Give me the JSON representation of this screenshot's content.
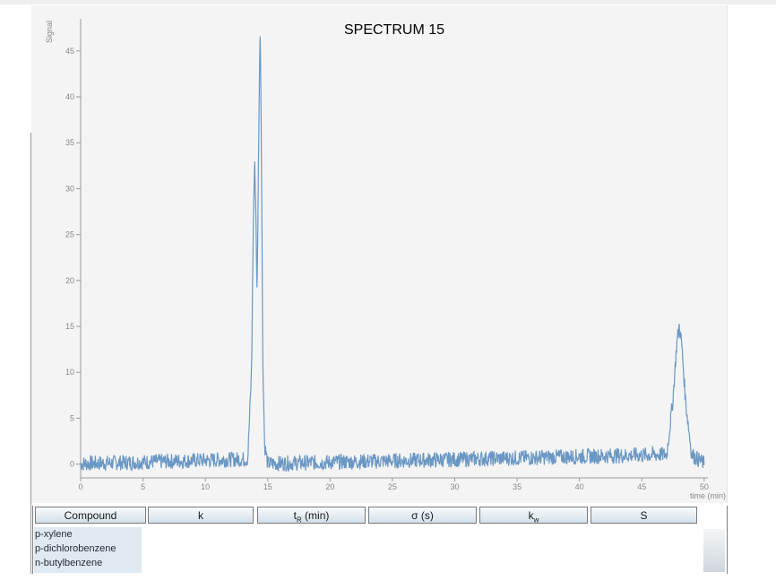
{
  "chart_data": {
    "type": "line",
    "title": "SPECTRUM 15",
    "xlabel": "time (min)",
    "ylabel": "Signal",
    "xlim": [
      0,
      50.3
    ],
    "ylim": [
      -1.5,
      48.5
    ],
    "x_ticks": [
      "0",
      "5",
      "10",
      "15",
      "20",
      "25",
      "30",
      "35",
      "40",
      "45",
      "50"
    ],
    "y_ticks": [
      "0",
      "5",
      "10",
      "15",
      "20",
      "25",
      "30",
      "35",
      "40",
      "45"
    ],
    "noise_band": [
      -0.8,
      0.9
    ],
    "series": [
      {
        "color": "#6a97c4",
        "x": [
          0,
          13.4,
          13.7,
          13.85,
          13.95,
          14.05,
          14.15,
          14.3,
          14.4,
          14.5,
          14.6,
          14.75,
          15.0,
          47.0,
          47.5,
          47.8,
          48.0,
          48.2,
          48.5,
          49.0,
          50.0
        ],
        "y": [
          0,
          0.5,
          10,
          26,
          33,
          28,
          18,
          38,
          48,
          34,
          12,
          2,
          0,
          1,
          7,
          13,
          15,
          13,
          7,
          1,
          0
        ]
      }
    ]
  },
  "table": {
    "headers": {
      "compound": "Compound",
      "k": "k",
      "tr_main": "t",
      "tr_sub": "R",
      "tr_tail": " (min)",
      "sigma": "σ (s)",
      "kw_main": "k",
      "kw_sub": "w",
      "s": "S"
    },
    "compounds": [
      "p-xylene",
      "p-dichlorobenzene",
      "n-butylbenzene"
    ]
  }
}
